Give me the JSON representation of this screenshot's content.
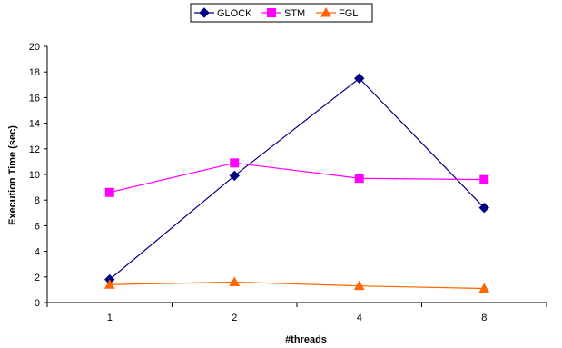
{
  "chart_data": {
    "type": "line",
    "categories": [
      "1",
      "2",
      "4",
      "8"
    ],
    "series": [
      {
        "name": "GLOCK",
        "values": [
          1.8,
          9.9,
          17.5,
          7.4
        ],
        "color": "#000080",
        "marker": "diamond"
      },
      {
        "name": "STM",
        "values": [
          8.6,
          10.9,
          9.7,
          9.6
        ],
        "color": "#ff00ff",
        "marker": "square"
      },
      {
        "name": "FGL",
        "values": [
          1.4,
          1.6,
          1.3,
          1.1
        ],
        "color": "#ff6600",
        "marker": "triangle"
      }
    ],
    "title": "",
    "xlabel": "#threads",
    "ylabel": "Execution Time (sec)",
    "ylim": [
      0,
      20
    ],
    "yticks": [
      0,
      2,
      4,
      6,
      8,
      10,
      12,
      14,
      16,
      18,
      20
    ],
    "grid": false,
    "legend_position": "top-center"
  }
}
